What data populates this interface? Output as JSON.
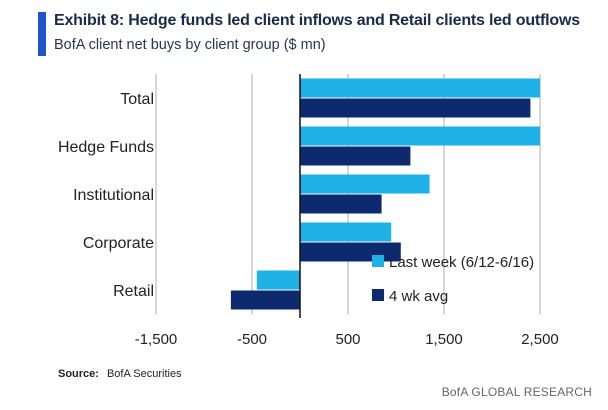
{
  "title": "Exhibit 8: Hedge funds led client inflows and Retail clients led outflows",
  "subtitle": "BofA client net buys by client group ($ mn)",
  "source_label": "Source:",
  "source_text": "BofA Securities",
  "footer": "BofA GLOBAL RESEARCH",
  "colors": {
    "series1": "#1fb1e6",
    "series2": "#0e2a6e",
    "accent": "#1f55c9"
  },
  "chart_data": {
    "type": "bar",
    "orientation": "horizontal",
    "title": "Exhibit 8: Hedge funds led client inflows and Retail clients led outflows",
    "subtitle": "BofA client net buys by client group ($ mn)",
    "categories": [
      "Total",
      "Hedge Funds",
      "Institutional",
      "Corporate",
      "Retail"
    ],
    "series": [
      {
        "name": "Last week (6/12-6/16)",
        "values": [
          2500,
          2500,
          1350,
          950,
          -450
        ]
      },
      {
        "name": "4 wk avg",
        "values": [
          2400,
          1150,
          850,
          1050,
          -720
        ]
      }
    ],
    "xlim": [
      -1500,
      2500
    ],
    "xticks": [
      -1500,
      -500,
      500,
      1500,
      2500
    ],
    "xtick_labels": [
      "-1,500",
      "-500",
      "500",
      "1,500",
      "2,500"
    ],
    "grid": "vertical",
    "legend": "bottom-right"
  }
}
